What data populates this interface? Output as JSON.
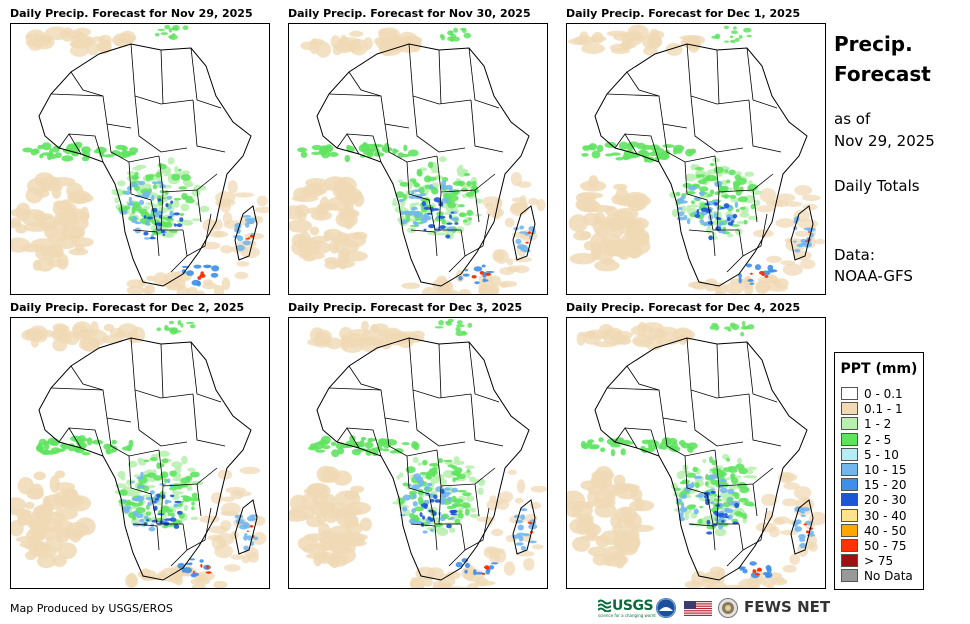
{
  "panels": [
    {
      "title": "Daily Precip. Forecast for Nov 29, 2025"
    },
    {
      "title": "Daily Precip. Forecast for Nov 30, 2025"
    },
    {
      "title": "Daily Precip. Forecast for Dec 1, 2025"
    },
    {
      "title": "Daily Precip. Forecast for Dec 2, 2025"
    },
    {
      "title": "Daily Precip. Forecast for Dec 3, 2025"
    },
    {
      "title": "Daily Precip. Forecast for Dec 4, 2025"
    }
  ],
  "side": {
    "title": "Precip.\nForecast",
    "as_of_label": "as of",
    "as_of_date": "Nov 29, 2025",
    "totals": "Daily Totals",
    "data_label": "Data:",
    "data_source": "NOAA-GFS"
  },
  "legend": {
    "title": "PPT (mm)",
    "items": [
      {
        "label": "0 - 0.1",
        "color": "#ffffff"
      },
      {
        "label": "0.1 - 1",
        "color": "#f0d9b5"
      },
      {
        "label": "1 - 2",
        "color": "#b9f0b0"
      },
      {
        "label": "2 - 5",
        "color": "#5fe35f"
      },
      {
        "label": "5 - 10",
        "color": "#b8ecf4"
      },
      {
        "label": "10 - 15",
        "color": "#72b6ee"
      },
      {
        "label": "15 - 20",
        "color": "#3d8fe8"
      },
      {
        "label": "20 - 30",
        "color": "#1a56d6"
      },
      {
        "label": "30 - 40",
        "color": "#ffe38a"
      },
      {
        "label": "40 - 50",
        "color": "#ffa800"
      },
      {
        "label": "50 - 75",
        "color": "#ff3300"
      },
      {
        "label": "> 75",
        "color": "#a01010"
      },
      {
        "label": "No Data",
        "color": "#999999"
      }
    ]
  },
  "footer": {
    "credit": "Map Produced by USGS/EROS",
    "usgs": "USGS",
    "usgs_tagline": "science for a changing world",
    "fews": "FEWS NET"
  }
}
